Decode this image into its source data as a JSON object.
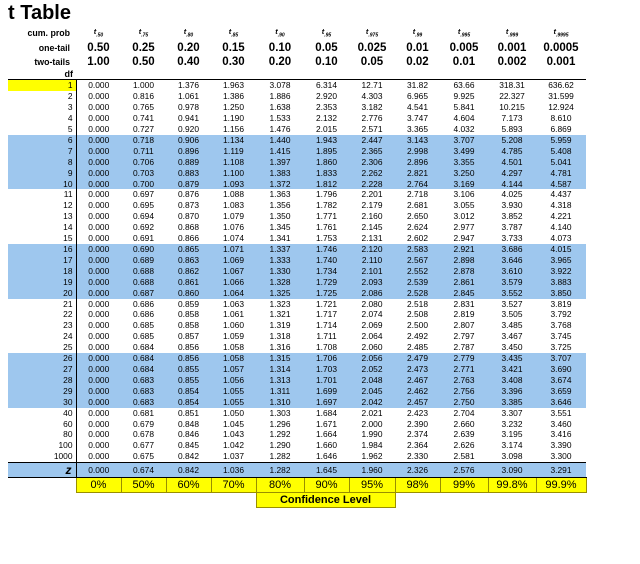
{
  "title": "t Table",
  "header": {
    "cum_prob_label": "cum. prob",
    "one_tail_label": "one-tail",
    "two_tails_label": "two-tails",
    "df_label": "df",
    "t_subscripts": [
      ".50",
      ".75",
      ".80",
      ".85",
      ".90",
      ".95",
      ".975",
      ".99",
      ".995",
      ".999",
      ".9995"
    ],
    "one_tail": [
      "0.50",
      "0.25",
      "0.20",
      "0.15",
      "0.10",
      "0.05",
      "0.025",
      "0.01",
      "0.005",
      "0.001",
      "0.0005"
    ],
    "two_tails": [
      "1.00",
      "0.50",
      "0.40",
      "0.30",
      "0.20",
      "0.10",
      "0.05",
      "0.02",
      "0.01",
      "0.002",
      "0.001"
    ]
  },
  "rows": [
    {
      "df": "1",
      "v": [
        "0.000",
        "1.000",
        "1.376",
        "1.963",
        "3.078",
        "6.314",
        "12.71",
        "31.82",
        "63.66",
        "318.31",
        "636.62"
      ]
    },
    {
      "df": "2",
      "v": [
        "0.000",
        "0.816",
        "1.061",
        "1.386",
        "1.886",
        "2.920",
        "4.303",
        "6.965",
        "9.925",
        "22.327",
        "31.599"
      ]
    },
    {
      "df": "3",
      "v": [
        "0.000",
        "0.765",
        "0.978",
        "1.250",
        "1.638",
        "2.353",
        "3.182",
        "4.541",
        "5.841",
        "10.215",
        "12.924"
      ]
    },
    {
      "df": "4",
      "v": [
        "0.000",
        "0.741",
        "0.941",
        "1.190",
        "1.533",
        "2.132",
        "2.776",
        "3.747",
        "4.604",
        "7.173",
        "8.610"
      ]
    },
    {
      "df": "5",
      "v": [
        "0.000",
        "0.727",
        "0.920",
        "1.156",
        "1.476",
        "2.015",
        "2.571",
        "3.365",
        "4.032",
        "5.893",
        "6.869"
      ]
    },
    {
      "df": "6",
      "v": [
        "0.000",
        "0.718",
        "0.906",
        "1.134",
        "1.440",
        "1.943",
        "2.447",
        "3.143",
        "3.707",
        "5.208",
        "5.959"
      ]
    },
    {
      "df": "7",
      "v": [
        "0.000",
        "0.711",
        "0.896",
        "1.119",
        "1.415",
        "1.895",
        "2.365",
        "2.998",
        "3.499",
        "4.785",
        "5.408"
      ]
    },
    {
      "df": "8",
      "v": [
        "0.000",
        "0.706",
        "0.889",
        "1.108",
        "1.397",
        "1.860",
        "2.306",
        "2.896",
        "3.355",
        "4.501",
        "5.041"
      ]
    },
    {
      "df": "9",
      "v": [
        "0.000",
        "0.703",
        "0.883",
        "1.100",
        "1.383",
        "1.833",
        "2.262",
        "2.821",
        "3.250",
        "4.297",
        "4.781"
      ]
    },
    {
      "df": "10",
      "v": [
        "0.000",
        "0.700",
        "0.879",
        "1.093",
        "1.372",
        "1.812",
        "2.228",
        "2.764",
        "3.169",
        "4.144",
        "4.587"
      ]
    },
    {
      "df": "11",
      "v": [
        "0.000",
        "0.697",
        "0.876",
        "1.088",
        "1.363",
        "1.796",
        "2.201",
        "2.718",
        "3.106",
        "4.025",
        "4.437"
      ]
    },
    {
      "df": "12",
      "v": [
        "0.000",
        "0.695",
        "0.873",
        "1.083",
        "1.356",
        "1.782",
        "2.179",
        "2.681",
        "3.055",
        "3.930",
        "4.318"
      ]
    },
    {
      "df": "13",
      "v": [
        "0.000",
        "0.694",
        "0.870",
        "1.079",
        "1.350",
        "1.771",
        "2.160",
        "2.650",
        "3.012",
        "3.852",
        "4.221"
      ]
    },
    {
      "df": "14",
      "v": [
        "0.000",
        "0.692",
        "0.868",
        "1.076",
        "1.345",
        "1.761",
        "2.145",
        "2.624",
        "2.977",
        "3.787",
        "4.140"
      ]
    },
    {
      "df": "15",
      "v": [
        "0.000",
        "0.691",
        "0.866",
        "1.074",
        "1.341",
        "1.753",
        "2.131",
        "2.602",
        "2.947",
        "3.733",
        "4.073"
      ]
    },
    {
      "df": "16",
      "v": [
        "0.000",
        "0.690",
        "0.865",
        "1.071",
        "1.337",
        "1.746",
        "2.120",
        "2.583",
        "2.921",
        "3.686",
        "4.015"
      ]
    },
    {
      "df": "17",
      "v": [
        "0.000",
        "0.689",
        "0.863",
        "1.069",
        "1.333",
        "1.740",
        "2.110",
        "2.567",
        "2.898",
        "3.646",
        "3.965"
      ]
    },
    {
      "df": "18",
      "v": [
        "0.000",
        "0.688",
        "0.862",
        "1.067",
        "1.330",
        "1.734",
        "2.101",
        "2.552",
        "2.878",
        "3.610",
        "3.922"
      ]
    },
    {
      "df": "19",
      "v": [
        "0.000",
        "0.688",
        "0.861",
        "1.066",
        "1.328",
        "1.729",
        "2.093",
        "2.539",
        "2.861",
        "3.579",
        "3.883"
      ]
    },
    {
      "df": "20",
      "v": [
        "0.000",
        "0.687",
        "0.860",
        "1.064",
        "1.325",
        "1.725",
        "2.086",
        "2.528",
        "2.845",
        "3.552",
        "3.850"
      ]
    },
    {
      "df": "21",
      "v": [
        "0.000",
        "0.686",
        "0.859",
        "1.063",
        "1.323",
        "1.721",
        "2.080",
        "2.518",
        "2.831",
        "3.527",
        "3.819"
      ]
    },
    {
      "df": "22",
      "v": [
        "0.000",
        "0.686",
        "0.858",
        "1.061",
        "1.321",
        "1.717",
        "2.074",
        "2.508",
        "2.819",
        "3.505",
        "3.792"
      ]
    },
    {
      "df": "23",
      "v": [
        "0.000",
        "0.685",
        "0.858",
        "1.060",
        "1.319",
        "1.714",
        "2.069",
        "2.500",
        "2.807",
        "3.485",
        "3.768"
      ]
    },
    {
      "df": "24",
      "v": [
        "0.000",
        "0.685",
        "0.857",
        "1.059",
        "1.318",
        "1.711",
        "2.064",
        "2.492",
        "2.797",
        "3.467",
        "3.745"
      ]
    },
    {
      "df": "25",
      "v": [
        "0.000",
        "0.684",
        "0.856",
        "1.058",
        "1.316",
        "1.708",
        "2.060",
        "2.485",
        "2.787",
        "3.450",
        "3.725"
      ]
    },
    {
      "df": "26",
      "v": [
        "0.000",
        "0.684",
        "0.856",
        "1.058",
        "1.315",
        "1.706",
        "2.056",
        "2.479",
        "2.779",
        "3.435",
        "3.707"
      ]
    },
    {
      "df": "27",
      "v": [
        "0.000",
        "0.684",
        "0.855",
        "1.057",
        "1.314",
        "1.703",
        "2.052",
        "2.473",
        "2.771",
        "3.421",
        "3.690"
      ]
    },
    {
      "df": "28",
      "v": [
        "0.000",
        "0.683",
        "0.855",
        "1.056",
        "1.313",
        "1.701",
        "2.048",
        "2.467",
        "2.763",
        "3.408",
        "3.674"
      ]
    },
    {
      "df": "29",
      "v": [
        "0.000",
        "0.683",
        "0.854",
        "1.055",
        "1.311",
        "1.699",
        "2.045",
        "2.462",
        "2.756",
        "3.396",
        "3.659"
      ]
    },
    {
      "df": "30",
      "v": [
        "0.000",
        "0.683",
        "0.854",
        "1.055",
        "1.310",
        "1.697",
        "2.042",
        "2.457",
        "2.750",
        "3.385",
        "3.646"
      ]
    },
    {
      "df": "40",
      "v": [
        "0.000",
        "0.681",
        "0.851",
        "1.050",
        "1.303",
        "1.684",
        "2.021",
        "2.423",
        "2.704",
        "3.307",
        "3.551"
      ]
    },
    {
      "df": "60",
      "v": [
        "0.000",
        "0.679",
        "0.848",
        "1.045",
        "1.296",
        "1.671",
        "2.000",
        "2.390",
        "2.660",
        "3.232",
        "3.460"
      ]
    },
    {
      "df": "80",
      "v": [
        "0.000",
        "0.678",
        "0.846",
        "1.043",
        "1.292",
        "1.664",
        "1.990",
        "2.374",
        "2.639",
        "3.195",
        "3.416"
      ]
    },
    {
      "df": "100",
      "v": [
        "0.000",
        "0.677",
        "0.845",
        "1.042",
        "1.290",
        "1.660",
        "1.984",
        "2.364",
        "2.626",
        "3.174",
        "3.390"
      ]
    },
    {
      "df": "1000",
      "v": [
        "0.000",
        "0.675",
        "0.842",
        "1.037",
        "1.282",
        "1.646",
        "1.962",
        "2.330",
        "2.581",
        "3.098",
        "3.300"
      ]
    }
  ],
  "z_row": {
    "label": "z",
    "v": [
      "0.000",
      "0.674",
      "0.842",
      "1.036",
      "1.282",
      "1.645",
      "1.960",
      "2.326",
      "2.576",
      "3.090",
      "3.291"
    ]
  },
  "confidence": {
    "values": [
      "0%",
      "50%",
      "60%",
      "70%",
      "80%",
      "90%",
      "95%",
      "98%",
      "99%",
      "99.8%",
      "99.9%"
    ],
    "label": "Confidence Level"
  },
  "colors": {
    "band": "#9ec7ee",
    "highlight": "#ffff00"
  }
}
